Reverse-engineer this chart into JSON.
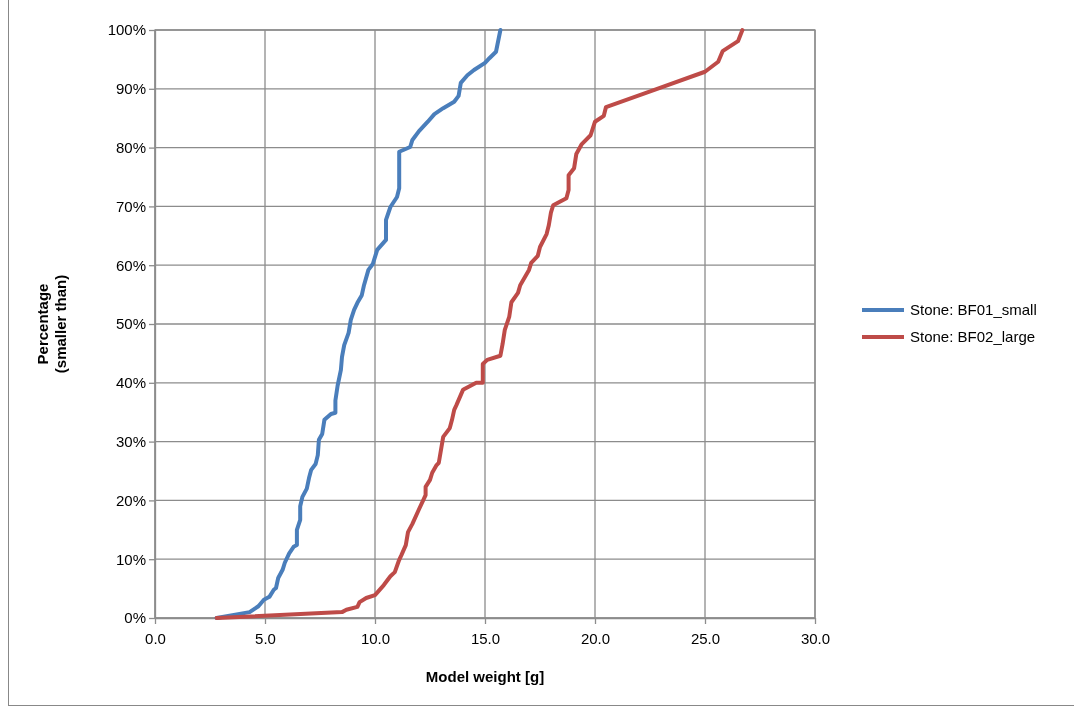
{
  "chart_data": {
    "type": "line",
    "xlabel": "Model weight [g]",
    "ylabel": "Percentage\n(smaller than)",
    "xlim": [
      0,
      30
    ],
    "ylim": [
      0,
      100
    ],
    "xticks": [
      {
        "value": 0,
        "label": "0.0"
      },
      {
        "value": 5,
        "label": "5.0"
      },
      {
        "value": 10,
        "label": "10.0"
      },
      {
        "value": 15,
        "label": "15.0"
      },
      {
        "value": 20,
        "label": "20.0"
      },
      {
        "value": 25,
        "label": "25.0"
      },
      {
        "value": 30,
        "label": "30.0"
      }
    ],
    "yticks": [
      {
        "value": 0,
        "label": "0%"
      },
      {
        "value": 10,
        "label": "10%"
      },
      {
        "value": 20,
        "label": "20%"
      },
      {
        "value": 30,
        "label": "30%"
      },
      {
        "value": 40,
        "label": "40%"
      },
      {
        "value": 50,
        "label": "50%"
      },
      {
        "value": 60,
        "label": "60%"
      },
      {
        "value": 70,
        "label": "70%"
      },
      {
        "value": 80,
        "label": "80%"
      },
      {
        "value": 90,
        "label": "90%"
      },
      {
        "value": 100,
        "label": "100%"
      }
    ],
    "grid": true,
    "legend": "right",
    "marker": "none",
    "line_style": "solid",
    "series": [
      {
        "name": "Stone: BF01_small",
        "color": "#4a7ebb",
        "x": [
          2.8,
          4.3,
          4.7,
          4.95,
          5.2,
          5.4,
          5.5,
          5.6,
          5.8,
          5.9,
          6.1,
          6.3,
          6.45,
          6.45,
          6.6,
          6.6,
          6.7,
          6.9,
          7.0,
          7.1,
          7.3,
          7.4,
          7.45,
          7.6,
          7.7,
          8.0,
          8.2,
          8.2,
          8.3,
          8.45,
          8.5,
          8.6,
          8.8,
          8.9,
          9.05,
          9.2,
          9.4,
          9.5,
          9.7,
          9.9,
          10.1,
          10.5,
          10.5,
          10.7,
          11.0,
          11.1,
          11.1,
          11.1,
          11.6,
          11.7,
          12.0,
          12.4,
          12.7,
          13.1,
          13.6,
          13.8,
          13.9,
          14.2,
          14.5,
          15.0,
          15.2,
          15.5,
          15.7
        ],
        "values": [
          0,
          1,
          2,
          3.1,
          3.6,
          4.8,
          5.1,
          6.8,
          8.2,
          9.4,
          11,
          12.1,
          12.4,
          15,
          16.7,
          19,
          20.6,
          22,
          23.8,
          25.2,
          26.2,
          27.7,
          30.3,
          31.3,
          33.7,
          34.7,
          34.9,
          37,
          39.5,
          42.2,
          44.4,
          46.4,
          48.5,
          50.7,
          52.4,
          53.6,
          54.9,
          56.6,
          59.2,
          60.2,
          62.6,
          64.3,
          67.7,
          69.9,
          71.6,
          73.1,
          75,
          79.3,
          80.1,
          81.3,
          82.8,
          84.4,
          85.7,
          86.7,
          87.8,
          88.8,
          91,
          92.3,
          93.2,
          94.4,
          95.2,
          96.3,
          100
        ]
      },
      {
        "name": "Stone: BF02_large",
        "color": "#be4b48",
        "x": [
          2.8,
          8.5,
          8.7,
          9.2,
          9.3,
          9.6,
          10.0,
          10.4,
          10.7,
          10.9,
          11.1,
          11.2,
          11.4,
          11.5,
          11.7,
          12.0,
          12.3,
          12.3,
          12.5,
          12.6,
          12.8,
          12.9,
          13.1,
          13.4,
          13.5,
          13.6,
          13.7,
          14.0,
          14.6,
          14.9,
          14.9,
          15.1,
          15.7,
          15.8,
          15.9,
          16.1,
          16.2,
          16.5,
          16.6,
          17.0,
          17.1,
          17.4,
          17.5,
          17.8,
          17.9,
          18.0,
          18.1,
          18.7,
          18.8,
          18.8,
          19.05,
          19.15,
          19.4,
          19.8,
          20.0,
          20.4,
          20.5,
          22.7,
          25.0,
          25.6,
          25.8,
          26.5,
          26.7
        ],
        "values": [
          0,
          1,
          1.4,
          1.9,
          2.7,
          3.4,
          3.9,
          5.6,
          7.1,
          7.8,
          9.9,
          10.7,
          12.4,
          14.6,
          16,
          18.5,
          20.9,
          22.3,
          23.5,
          24.7,
          26,
          26.4,
          30.8,
          32.3,
          33.7,
          35.4,
          36.2,
          38.8,
          40,
          40,
          43.2,
          43.9,
          44.6,
          46.6,
          49,
          51.2,
          53.7,
          55.3,
          56.6,
          59.2,
          60.4,
          61.6,
          63.1,
          65.3,
          66.8,
          69,
          70.2,
          71.4,
          72.8,
          75.3,
          76.5,
          78.9,
          80.6,
          82.1,
          84.4,
          85.4,
          86.9,
          89.8,
          92.9,
          94.6,
          96.4,
          98.1,
          100
        ]
      }
    ]
  }
}
